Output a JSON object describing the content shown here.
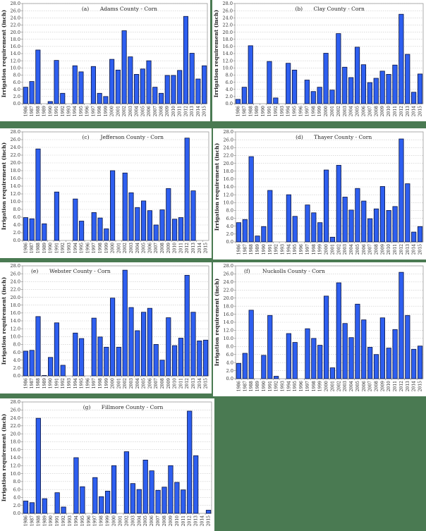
{
  "background_color": "#4a7a52",
  "bar_color": "#2e5ff0",
  "chart_data": [
    {
      "id": "a",
      "type": "bar",
      "label": "(a)",
      "title": "Adams County - Corn",
      "xlabel": "",
      "ylabel": "Irrigation requirement (inch)",
      "ylim": [
        0,
        28
      ],
      "yticks": [
        "0.0",
        "2.0",
        "4.0",
        "6.0",
        "8.0",
        "10.0",
        "12.0",
        "14.0",
        "16.0",
        "18.0",
        "20.0",
        "22.0",
        "24.0",
        "26.0",
        "28.0"
      ],
      "grid": true,
      "categories": [
        "1986",
        "1987",
        "1988",
        "1989",
        "1990",
        "1991",
        "1992",
        "1993",
        "1994",
        "1995",
        "1996",
        "1997",
        "1998",
        "1999",
        "2000",
        "2001",
        "2002",
        "2003",
        "2004",
        "2005",
        "2006",
        "2007",
        "2008",
        "2009",
        "2010",
        "2011",
        "2012",
        "2013",
        "2014",
        "2015"
      ],
      "values": [
        4.6,
        6.2,
        15.0,
        0,
        0.6,
        12.1,
        2.9,
        0,
        10.6,
        8.9,
        0,
        10.4,
        2.9,
        2.0,
        12.4,
        9.4,
        20.4,
        13.1,
        8.2,
        9.7,
        12.0,
        4.6,
        2.9,
        7.9,
        7.9,
        9.3,
        24.4,
        14.1,
        6.9,
        10.6
      ]
    },
    {
      "id": "b",
      "type": "bar",
      "label": "(b)",
      "title": "Clay County - Corn",
      "xlabel": "",
      "ylabel": "Irrigation requirement (inch)",
      "ylim": [
        0,
        28
      ],
      "yticks": [
        "0.0",
        "2.0",
        "4.0",
        "6.0",
        "8.0",
        "10.0",
        "12.0",
        "14.0",
        "16.0",
        "18.0",
        "20.0",
        "22.0",
        "24.0",
        "26.0",
        "28.0"
      ],
      "grid": true,
      "categories": [
        "1986",
        "1987",
        "1988",
        "1989",
        "1990",
        "1991",
        "1992",
        "1993",
        "1994",
        "1995",
        "1996",
        "1997",
        "1998",
        "1999",
        "2000",
        "2001",
        "2002",
        "2003",
        "2004",
        "2005",
        "2006",
        "2007",
        "2008",
        "2009",
        "2010",
        "2011",
        "2012",
        "2013",
        "2014",
        "2015"
      ],
      "values": [
        1.2,
        4.6,
        16.2,
        0,
        0,
        11.8,
        1.6,
        0,
        11.3,
        9.4,
        0,
        6.6,
        3.4,
        4.6,
        14.1,
        3.8,
        19.6,
        10.2,
        7.3,
        15.8,
        10.9,
        5.9,
        7.1,
        9.1,
        8.2,
        10.8,
        25.0,
        13.8,
        3.2,
        8.3
      ]
    },
    {
      "id": "c",
      "type": "bar",
      "label": "(c)",
      "title": "Jefferson County - Corn",
      "xlabel": "",
      "ylabel": "Irrigation requirement (inch)",
      "ylim": [
        0,
        28
      ],
      "yticks": [
        "0.0",
        "2.0",
        "4.0",
        "6.0",
        "8.0",
        "10.0",
        "12.0",
        "14.0",
        "16.0",
        "18.0",
        "20.0",
        "22.0",
        "24.0",
        "26.0",
        "28.0"
      ],
      "grid": true,
      "categories": [
        "1986",
        "1987",
        "1988",
        "1989",
        "1990",
        "1991",
        "1992",
        "1993",
        "1994",
        "1995",
        "1996",
        "1997",
        "1998",
        "1999",
        "2000",
        "2001",
        "2002",
        "2003",
        "2004",
        "2005",
        "2006",
        "2007",
        "2008",
        "2009",
        "2010",
        "2011",
        "2012",
        "2013",
        "2014",
        "2015"
      ],
      "values": [
        5.9,
        5.6,
        23.6,
        4.3,
        0,
        12.5,
        0,
        0,
        10.7,
        5.0,
        0,
        7.2,
        5.8,
        3.0,
        18.0,
        0,
        17.4,
        12.3,
        8.5,
        10.2,
        7.7,
        4.0,
        7.9,
        13.4,
        5.5,
        5.9,
        26.4,
        12.8,
        0,
        0
      ]
    },
    {
      "id": "d",
      "type": "bar",
      "label": "(d)",
      "title": "Thayer County - Corn",
      "xlabel": "",
      "ylabel": "Irrigation requirement (inch)",
      "ylim": [
        0,
        28
      ],
      "yticks": [
        "0.0",
        "2.0",
        "4.0",
        "6.0",
        "8.0",
        "10.0",
        "12.0",
        "14.0",
        "16.0",
        "18.0",
        "20.0",
        "22.0",
        "24.0",
        "26.0",
        "28.0"
      ],
      "grid": true,
      "categories": [
        "1986",
        "1987",
        "1988",
        "1989",
        "1990",
        "1991",
        "1992",
        "1993",
        "1994",
        "1995",
        "1996",
        "1997",
        "1998",
        "1999",
        "2000",
        "2001",
        "2002",
        "2003",
        "2004",
        "2005",
        "2006",
        "2007",
        "2008",
        "2009",
        "2010",
        "2011",
        "2012",
        "2013",
        "2014",
        "2015"
      ],
      "values": [
        4.9,
        5.7,
        21.7,
        1.5,
        3.9,
        13.1,
        0,
        0,
        12.0,
        6.5,
        0,
        9.4,
        7.4,
        4.9,
        18.3,
        1.2,
        19.5,
        11.4,
        8.1,
        13.6,
        10.4,
        5.9,
        8.4,
        14.1,
        8.0,
        9.0,
        26.2,
        14.8,
        2.5,
        3.9
      ]
    },
    {
      "id": "e",
      "type": "bar",
      "label": "(e)",
      "title": "Webster County - Corn",
      "xlabel": "",
      "ylabel": "Irrigation requirement (inch)",
      "ylim": [
        0,
        28
      ],
      "yticks": [
        "0.0",
        "2.0",
        "4.0",
        "6.0",
        "8.0",
        "10.0",
        "12.0",
        "14.0",
        "16.0",
        "18.0",
        "20.0",
        "22.0",
        "24.0",
        "26.0",
        "28.0"
      ],
      "grid": true,
      "categories": [
        "1986",
        "1987",
        "1988",
        "1989",
        "1990",
        "1991",
        "1992",
        "1993",
        "1994",
        "1995",
        "1996",
        "1997",
        "1998",
        "1999",
        "2000",
        "2001",
        "2002",
        "2003",
        "2004",
        "2005",
        "2006",
        "2007",
        "2008",
        "2009",
        "2010",
        "2011",
        "2012",
        "2013",
        "2014",
        "2015"
      ],
      "values": [
        6.3,
        6.5,
        15.1,
        0.1,
        4.7,
        13.5,
        2.7,
        0,
        10.9,
        9.5,
        0,
        14.7,
        9.9,
        7.3,
        19.8,
        7.3,
        26.9,
        17.4,
        11.5,
        16.2,
        17.2,
        8.0,
        4.0,
        14.8,
        7.7,
        9.6,
        25.6,
        16.2,
        8.9,
        9.1
      ]
    },
    {
      "id": "f",
      "type": "bar",
      "label": "(f)",
      "title": "Nuckolls County - Corn",
      "xlabel": "",
      "ylabel": "Irrigation requirement (inch)",
      "ylim": [
        0,
        28
      ],
      "yticks": [
        "0.0",
        "2.0",
        "4.0",
        "6.0",
        "8.0",
        "10.0",
        "12.0",
        "14.0",
        "16.0",
        "18.0",
        "20.0",
        "22.0",
        "24.0",
        "26.0",
        "28.0"
      ],
      "grid": true,
      "categories": [
        "1986",
        "1987",
        "1988",
        "1989",
        "1990",
        "1991",
        "1992",
        "1993",
        "1994",
        "1995",
        "1996",
        "1997",
        "1998",
        "1999",
        "2000",
        "2001",
        "2002",
        "2003",
        "2004",
        "2005",
        "2006",
        "2007",
        "2008",
        "2009",
        "2010",
        "2011",
        "2012",
        "2013",
        "2014",
        "2015"
      ],
      "values": [
        3.8,
        6.3,
        17.0,
        0,
        5.8,
        15.7,
        0.6,
        0,
        11.2,
        9.0,
        0,
        12.4,
        10.0,
        8.3,
        20.5,
        2.7,
        23.8,
        13.7,
        10.2,
        18.5,
        14.6,
        7.8,
        6.0,
        15.1,
        7.6,
        12.2,
        26.4,
        15.7,
        7.3,
        8.1
      ]
    },
    {
      "id": "g",
      "type": "bar",
      "label": "(g)",
      "title": "Fillmore County - Corn",
      "xlabel": "",
      "ylabel": "Irrigation requirement (inch)",
      "ylim": [
        0,
        28
      ],
      "yticks": [
        "0.0",
        "2.0",
        "4.0",
        "6.0",
        "8.0",
        "10.0",
        "12.0",
        "14.0",
        "16.0",
        "18.0",
        "20.0",
        "22.0",
        "24.0",
        "26.0",
        "28.0"
      ],
      "grid": true,
      "categories": [
        "1986",
        "1987",
        "1988",
        "1989",
        "1990",
        "1991",
        "1992",
        "1993",
        "1994",
        "1995",
        "1996",
        "1997",
        "1998",
        "1999",
        "2000",
        "2001",
        "2002",
        "2003",
        "2004",
        "2005",
        "2006",
        "2007",
        "2008",
        "2009",
        "2010",
        "2011",
        "2012",
        "2013",
        "2014",
        "2015"
      ],
      "values": [
        3.1,
        2.7,
        23.9,
        3.7,
        0,
        5.2,
        1.6,
        0,
        14.0,
        6.7,
        0,
        9.0,
        4.2,
        5.6,
        12.0,
        0,
        15.5,
        7.5,
        6.0,
        13.4,
        10.7,
        5.8,
        6.6,
        12.0,
        7.8,
        5.9,
        25.7,
        14.5,
        0,
        0.8
      ]
    }
  ]
}
